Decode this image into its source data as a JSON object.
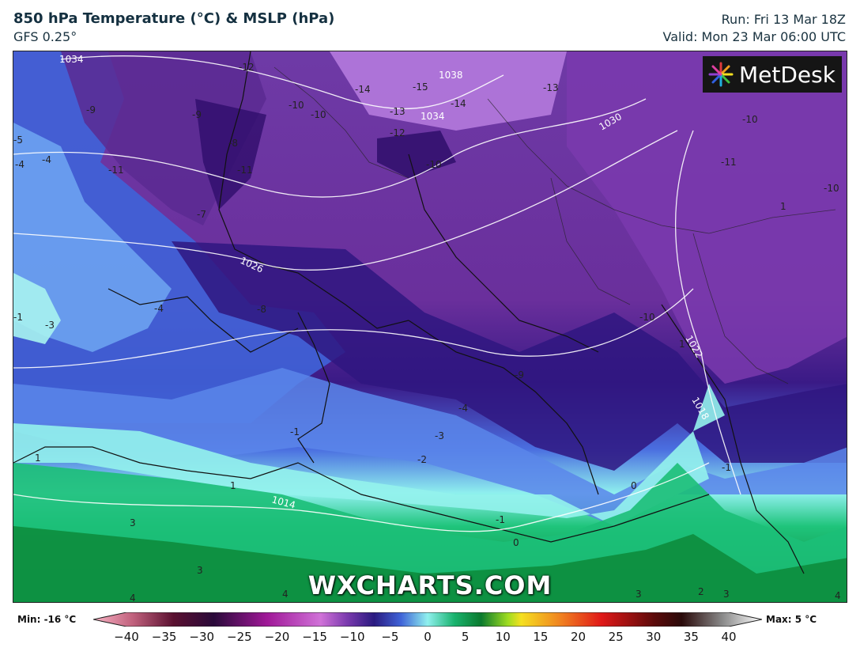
{
  "header": {
    "title": "850 hPa Temperature (°C) & MSLP (hPa)",
    "model": "GFS 0.25°",
    "run": "Run: Fri 13 Mar 18Z",
    "valid": "Valid: Mon 23 Mar 06:00 UTC"
  },
  "logo": {
    "text": "MetDesk",
    "icon": "metdesk-star-logo"
  },
  "watermark": "WXCHARTS.COM",
  "map_labels": {
    "temperature_labels": [
      "-12",
      "-14",
      "-15",
      "-13",
      "-14",
      "-12",
      "-13",
      "-10",
      "-10",
      "-9",
      "-9",
      "-8",
      "-11",
      "-11",
      "-10",
      "-11",
      "-10",
      "-4",
      "-4",
      "-5",
      "-7",
      "-8",
      "-4",
      "-1",
      "-3",
      "-4",
      "-2",
      "-1",
      "-9",
      "-10",
      "-3",
      "-1",
      "1",
      "1",
      "0",
      "0",
      "-1",
      "3",
      "3",
      "3",
      "2",
      "3",
      "4",
      "4",
      "4",
      "1",
      "-10",
      "1"
    ],
    "isobar_labels": [
      "1034",
      "1038",
      "1034",
      "1030",
      "1026",
      "1022",
      "1018",
      "1014"
    ]
  },
  "legend": {
    "min_label": "Min: -16 °C",
    "max_label": "Max: 5 °C",
    "ticks": [
      "−40",
      "−35",
      "−30",
      "−25",
      "−20",
      "−15",
      "−10",
      "−5",
      "0",
      "5",
      "10",
      "15",
      "20",
      "25",
      "30",
      "35",
      "40"
    ],
    "range": [
      -40,
      40
    ]
  },
  "colors": {
    "deep_purple": "#2f0e6b",
    "purple": "#6a2f9c",
    "light_purple": "#a65fcf",
    "blue": "#3d5bd6",
    "light_blue": "#6fa6f2",
    "cyan": "#8ff0ee",
    "green": "#19b36e",
    "dark_green": "#0a7a2e"
  }
}
